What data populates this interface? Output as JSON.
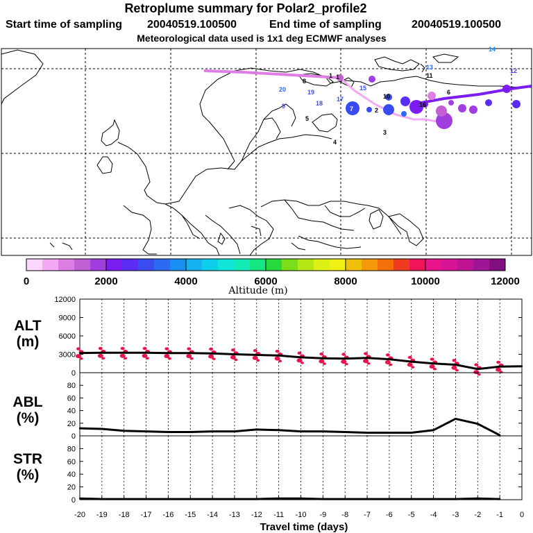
{
  "header": {
    "title": "Retroplume summary for Polar2_profile2",
    "start_label": "Start time of sampling",
    "start_value": "20040519.100500",
    "end_label": "End time of sampling",
    "end_value": "20040519.100500",
    "met_note": "Meteorological data used is 1x1 deg ECMWF analyses"
  },
  "map": {
    "day_labels": [
      "14",
      "13",
      "12",
      "11",
      "1",
      "15",
      "20",
      "19",
      "9",
      "18",
      "17",
      "7",
      "2",
      "8",
      "10",
      "16",
      "6",
      "5",
      "4",
      "3",
      "1"
    ]
  },
  "colorbar": {
    "colors": [
      "#fdd6fd",
      "#f3a9f3",
      "#de7de4",
      "#c15fd3",
      "#a13ee0",
      "#7a1df1",
      "#5a2cf4",
      "#3a4bf2",
      "#2a6bf2",
      "#1a8ff2",
      "#12b3ef",
      "#0ccfea",
      "#10e4d8",
      "#12ecb4",
      "#14e682",
      "#26da3c",
      "#7ade1a",
      "#b4e814",
      "#dcf014",
      "#f0f014",
      "#f0c00a",
      "#f49a0a",
      "#f46e0a",
      "#f03c1e",
      "#f0145a",
      "#e8148a",
      "#d81496",
      "#c01496",
      "#a01496",
      "#800f80"
    ],
    "tick_labels": [
      "0",
      "2000",
      "4000",
      "6000",
      "8000",
      "10000",
      "12000"
    ],
    "title": "Altitude (m)"
  },
  "chart_data": [
    {
      "type": "line",
      "panel": "ALT",
      "label_line1": "ALT",
      "label_line2": "(m)",
      "x": [
        -20,
        -19,
        -18,
        -17,
        -16,
        -15,
        -14,
        -13,
        -12,
        -11,
        -10,
        -9,
        -8,
        -7,
        -6,
        -5,
        -4,
        -3,
        -2,
        -1,
        0
      ],
      "values": [
        3200,
        3250,
        3250,
        3250,
        3200,
        3200,
        3150,
        3000,
        2900,
        2800,
        2500,
        2350,
        2300,
        2400,
        2200,
        1800,
        1500,
        1300,
        600,
        1000,
        1050
      ],
      "ylim": [
        0,
        12000
      ],
      "yticks": [
        "0",
        "3000",
        "6000",
        "9000",
        "12000"
      ]
    },
    {
      "type": "line",
      "panel": "ABL",
      "label_line1": "ABL",
      "label_line2": "(%)",
      "x": [
        -20,
        -19,
        -18,
        -17,
        -16,
        -15,
        -14,
        -13,
        -12,
        -11,
        -10,
        -9,
        -8,
        -7,
        -6,
        -5,
        -4,
        -3,
        -2,
        -1
      ],
      "values": [
        12,
        11,
        8,
        7,
        6,
        6,
        7,
        7,
        10,
        9,
        7,
        7,
        6,
        5,
        5,
        5,
        9,
        27,
        19,
        1
      ],
      "ylim": [
        0,
        100
      ],
      "yticks": [
        "0",
        "20",
        "40",
        "60",
        "80"
      ]
    },
    {
      "type": "line",
      "panel": "STR",
      "label_line1": "STR",
      "label_line2": "(%)",
      "x": [
        -20,
        -19,
        -18,
        -17,
        -16,
        -15,
        -14,
        -13,
        -12,
        -11,
        -10,
        -9,
        -8,
        -7,
        -6,
        -5,
        -4,
        -3,
        -2,
        -1
      ],
      "values": [
        2,
        1,
        1,
        1,
        1,
        1,
        1,
        1,
        1,
        2,
        2,
        1,
        1,
        1,
        1,
        1,
        1,
        1,
        2,
        1
      ],
      "ylim": [
        0,
        100
      ],
      "yticks": [
        "0",
        "20",
        "40",
        "60",
        "80"
      ]
    }
  ],
  "xaxis": {
    "tick_labels": [
      "-20",
      "-19",
      "-18",
      "-17",
      "-16",
      "-15",
      "-14",
      "-13",
      "-12",
      "-11",
      "-10",
      "-9",
      "-8",
      "-7",
      "-6",
      "-5",
      "-4",
      "-3",
      "-2",
      "-1",
      "0"
    ],
    "title": "Travel time (days)"
  }
}
